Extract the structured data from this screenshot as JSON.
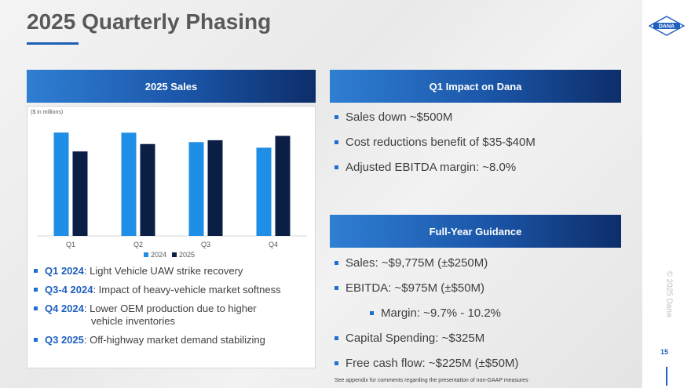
{
  "title": "2025 Quarterly Phasing",
  "logo_text": "DANA",
  "sales_panel": {
    "header": "2025 Sales",
    "units_note": "($ in millions)"
  },
  "chart_data": {
    "type": "bar",
    "title": "2025 Sales",
    "ylabel": "($ in millions)",
    "categories": [
      "Q1",
      "Q2",
      "Q3",
      "Q4"
    ],
    "series": [
      {
        "name": "2024",
        "color": "#1f8ee6",
        "values": [
          2736,
          2732,
          2483,
          2335
        ]
      },
      {
        "name": "2025",
        "color": "#0b1f45",
        "values": [
          2236,
          2432,
          2533,
          2649
        ]
      }
    ],
    "ylim": [
      0,
      2800
    ],
    "legend_position": "bottom"
  },
  "drivers": [
    {
      "label": "Q1 2024",
      "text": ": Light Vehicle UAW strike recovery"
    },
    {
      "label": "Q3-4 2024",
      "text": ": Impact of heavy-vehicle market softness"
    },
    {
      "label": "Q4 2024",
      "text": ": Lower OEM production due to higher",
      "cont": "vehicle inventories"
    },
    {
      "label": "Q3 2025",
      "text": ": Off-highway market demand stabilizing"
    }
  ],
  "q1_panel": {
    "header": "Q1 Impact on Dana",
    "items": [
      "Sales down ~$500M",
      "Cost reductions benefit of $35-$40M",
      "Adjusted EBITDA margin: ~8.0%"
    ]
  },
  "guidance_panel": {
    "header": "Full-Year Guidance",
    "items": [
      "Sales: ~$9,775M (±$250M)",
      "EBITDA: ~$975M (±$50M)",
      "Margin: ~9.7% - 10.2%",
      "Capital Spending: ~$325M",
      "Free cash flow:  ~$225M (±$50M)"
    ]
  },
  "footnote": "See appendix for comments regarding the presentation of non-GAAP measures",
  "copyright": "© 2025 Dana",
  "page_number": "15"
}
